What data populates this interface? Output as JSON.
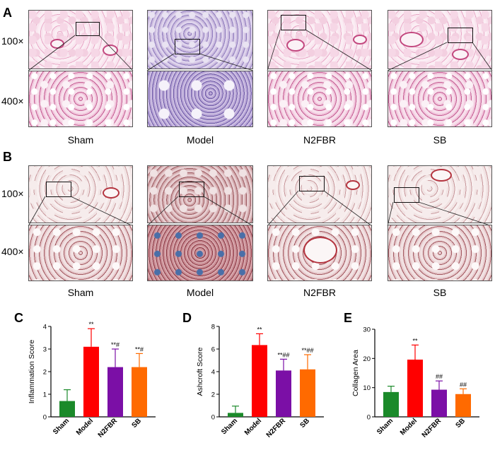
{
  "panels": {
    "A": {
      "letter": "A"
    },
    "B": {
      "letter": "B"
    },
    "C": {
      "letter": "C"
    },
    "D": {
      "letter": "D"
    },
    "E": {
      "letter": "E"
    }
  },
  "row_labels": {
    "low": "100×",
    "high": "400×"
  },
  "groups": [
    "Sham",
    "Model",
    "N2FBR",
    "SB"
  ],
  "colors": {
    "Sham": "#1b8a2a",
    "Model": "#ff0000",
    "N2FBR": "#7b0fa6",
    "SB": "#ff6a00"
  },
  "chart_data": [
    {
      "type": "bar",
      "panel": "C",
      "categories": [
        "Sham",
        "Model",
        "N2FBR",
        "SB"
      ],
      "values": [
        0.7,
        3.1,
        2.2,
        2.2
      ],
      "errors": [
        0.5,
        0.8,
        0.8,
        0.6
      ],
      "annotations": [
        "",
        "**",
        "**#",
        "**#"
      ],
      "ylabel": "Inflammation Score",
      "ylim": [
        0,
        4
      ],
      "yticks": [
        0,
        1,
        2,
        3,
        4
      ]
    },
    {
      "type": "bar",
      "panel": "D",
      "categories": [
        "Sham",
        "Model",
        "N2FBR",
        "SB"
      ],
      "values": [
        0.35,
        6.35,
        4.1,
        4.2
      ],
      "errors": [
        0.6,
        1.0,
        1.0,
        1.3
      ],
      "annotations": [
        "",
        "**",
        "**##",
        "**##"
      ],
      "ylabel": "Ashcroft Score",
      "ylim": [
        0,
        8
      ],
      "yticks": [
        0,
        2,
        4,
        6,
        8
      ]
    },
    {
      "type": "bar",
      "panel": "E",
      "categories": [
        "Sham",
        "Model",
        "N2FBR",
        "SB"
      ],
      "values": [
        8.5,
        19.6,
        9.3,
        7.8
      ],
      "errors": [
        2.0,
        5.0,
        3.0,
        1.8
      ],
      "annotations": [
        "",
        "**",
        "##",
        "##"
      ],
      "ylabel": "Collagen Area",
      "ylim": [
        0,
        30
      ],
      "yticks": [
        0,
        10,
        20,
        30
      ]
    }
  ]
}
